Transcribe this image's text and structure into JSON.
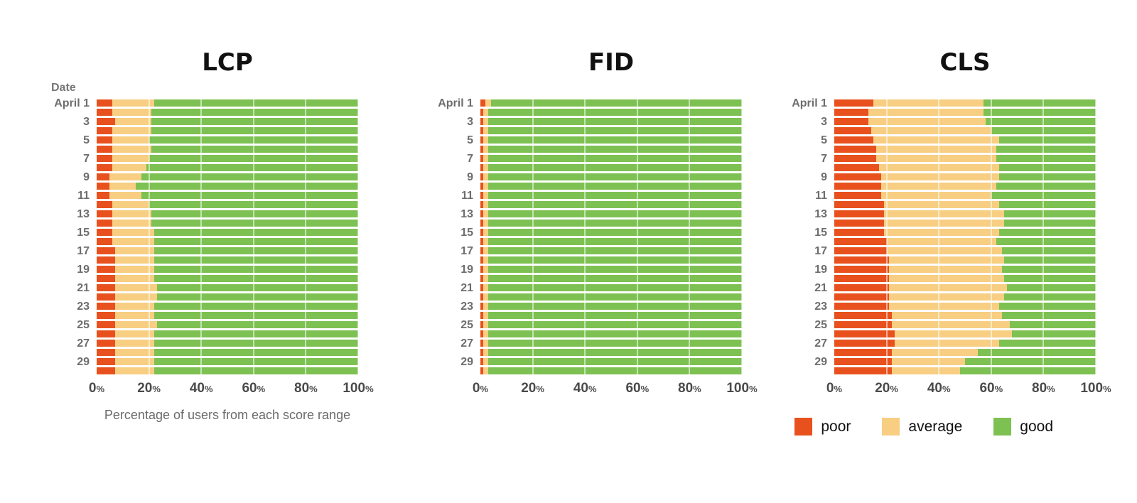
{
  "date_axis_label": "Date",
  "xlabel": "Percentage of users from each score range",
  "colors": {
    "poor": "#e8511e",
    "average": "#f7ce82",
    "good": "#7dc152"
  },
  "legend": [
    {
      "label": "poor",
      "color": "#e8511e"
    },
    {
      "label": "average",
      "color": "#f7ce82"
    },
    {
      "label": "good",
      "color": "#7dc152"
    }
  ],
  "x_axis": {
    "ticks": [
      0,
      20,
      40,
      60,
      80,
      100
    ],
    "suffix": "%"
  },
  "ytick_labels": [
    "April 1",
    "3",
    "5",
    "7",
    "9",
    "11",
    "13",
    "15",
    "17",
    "19",
    "21",
    "23",
    "25",
    "27",
    "29"
  ],
  "chart_data": [
    {
      "type": "bar",
      "orientation": "horizontal",
      "stacked": true,
      "title": "LCP",
      "xlim": [
        0,
        100
      ],
      "categories": [
        "April 1",
        "April 2",
        "April 3",
        "April 4",
        "April 5",
        "April 6",
        "April 7",
        "April 8",
        "April 9",
        "April 10",
        "April 11",
        "April 12",
        "April 13",
        "April 14",
        "April 15",
        "April 16",
        "April 17",
        "April 18",
        "April 19",
        "April 20",
        "April 21",
        "April 22",
        "April 23",
        "April 24",
        "April 25",
        "April 26",
        "April 27",
        "April 28",
        "April 29",
        "April 30"
      ],
      "series": [
        {
          "name": "poor",
          "values": [
            6,
            6,
            7,
            6,
            6,
            6,
            6,
            6,
            5,
            5,
            5,
            6,
            6,
            6,
            6,
            6,
            7,
            7,
            7,
            7,
            7,
            7,
            7,
            7,
            7,
            7,
            7,
            7,
            7,
            7
          ]
        },
        {
          "name": "average",
          "values": [
            16,
            15,
            14,
            15,
            14,
            15,
            14,
            13,
            12,
            10,
            12,
            14,
            15,
            15,
            16,
            16,
            15,
            15,
            15,
            15,
            16,
            16,
            15,
            15,
            16,
            15,
            15,
            15,
            15,
            15
          ]
        },
        {
          "name": "good",
          "values": [
            78,
            79,
            79,
            79,
            80,
            79,
            80,
            81,
            83,
            85,
            83,
            80,
            79,
            79,
            78,
            78,
            78,
            78,
            78,
            78,
            77,
            77,
            78,
            78,
            77,
            78,
            78,
            78,
            78,
            78
          ]
        }
      ]
    },
    {
      "type": "bar",
      "orientation": "horizontal",
      "stacked": true,
      "title": "FID",
      "xlim": [
        0,
        100
      ],
      "categories": [
        "April 1",
        "April 2",
        "April 3",
        "April 4",
        "April 5",
        "April 6",
        "April 7",
        "April 8",
        "April 9",
        "April 10",
        "April 11",
        "April 12",
        "April 13",
        "April 14",
        "April 15",
        "April 16",
        "April 17",
        "April 18",
        "April 19",
        "April 20",
        "April 21",
        "April 22",
        "April 23",
        "April 24",
        "April 25",
        "April 26",
        "April 27",
        "April 28",
        "April 29",
        "April 30"
      ],
      "series": [
        {
          "name": "poor",
          "values": [
            2,
            1,
            1,
            1,
            1,
            1,
            1,
            1,
            1,
            1,
            1,
            1,
            1,
            1,
            1,
            1,
            1,
            1,
            1,
            1,
            1,
            1,
            1,
            1,
            1,
            1,
            1,
            1,
            1,
            1
          ]
        },
        {
          "name": "average",
          "values": [
            2,
            2,
            2,
            2,
            2,
            2,
            2,
            2,
            2,
            2,
            2,
            2,
            2,
            2,
            2,
            2,
            2,
            2,
            2,
            2,
            2,
            2,
            2,
            2,
            2,
            2,
            2,
            2,
            2,
            2
          ]
        },
        {
          "name": "good",
          "values": [
            96,
            97,
            97,
            97,
            97,
            97,
            97,
            97,
            97,
            97,
            97,
            97,
            97,
            97,
            97,
            97,
            97,
            97,
            97,
            97,
            97,
            97,
            97,
            97,
            97,
            97,
            97,
            97,
            97,
            97
          ]
        }
      ]
    },
    {
      "type": "bar",
      "orientation": "horizontal",
      "stacked": true,
      "title": "CLS",
      "xlim": [
        0,
        100
      ],
      "categories": [
        "April 1",
        "April 2",
        "April 3",
        "April 4",
        "April 5",
        "April 6",
        "April 7",
        "April 8",
        "April 9",
        "April 10",
        "April 11",
        "April 12",
        "April 13",
        "April 14",
        "April 15",
        "April 16",
        "April 17",
        "April 18",
        "April 19",
        "April 20",
        "April 21",
        "April 22",
        "April 23",
        "April 24",
        "April 25",
        "April 26",
        "April 27",
        "April 28",
        "April 29",
        "April 30"
      ],
      "series": [
        {
          "name": "poor",
          "values": [
            15,
            13,
            13,
            14,
            15,
            16,
            16,
            17,
            18,
            18,
            18,
            19,
            19,
            19,
            19,
            20,
            20,
            21,
            21,
            21,
            21,
            21,
            21,
            22,
            22,
            23,
            23,
            22,
            22,
            22
          ]
        },
        {
          "name": "average",
          "values": [
            42,
            44,
            45,
            46,
            48,
            46,
            46,
            46,
            45,
            44,
            42,
            44,
            46,
            46,
            44,
            42,
            44,
            44,
            43,
            44,
            45,
            44,
            42,
            42,
            45,
            45,
            40,
            33,
            28,
            26
          ]
        },
        {
          "name": "good",
          "values": [
            43,
            43,
            42,
            40,
            37,
            38,
            38,
            37,
            37,
            38,
            40,
            37,
            35,
            35,
            37,
            38,
            36,
            35,
            36,
            35,
            34,
            35,
            37,
            36,
            33,
            32,
            37,
            45,
            50,
            52
          ]
        }
      ]
    }
  ]
}
